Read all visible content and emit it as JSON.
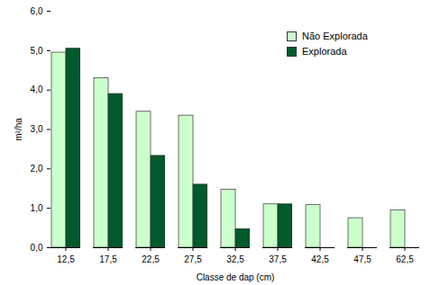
{
  "chart_data": {
    "type": "bar",
    "categories": [
      "12,5",
      "17,5",
      "22,5",
      "27,5",
      "32,5",
      "37,5",
      "42,5",
      "47,5",
      "62,5"
    ],
    "series": [
      {
        "name": "Não Explorada",
        "color": "#ccffcc",
        "values": [
          4.95,
          4.3,
          3.45,
          3.35,
          1.47,
          1.1,
          1.08,
          0.75,
          0.95
        ]
      },
      {
        "name": "Explorada",
        "color": "#005a2b",
        "values": [
          5.05,
          3.9,
          2.33,
          1.6,
          0.47,
          1.1,
          null,
          null,
          null
        ]
      }
    ],
    "x_label": "Classe de dap (cm)",
    "y_label": "m²/ha",
    "ylim": [
      0,
      6
    ],
    "yticks": [
      {
        "value": 0,
        "label": "0,0"
      },
      {
        "value": 1,
        "label": "1,0"
      },
      {
        "value": 2,
        "label": "2,0"
      },
      {
        "value": 3,
        "label": "3,0"
      },
      {
        "value": 4,
        "label": "4,0"
      },
      {
        "value": 5,
        "label": "5,0"
      },
      {
        "value": 6,
        "label": "6,0"
      }
    ],
    "legend": "top-right",
    "grid": false
  }
}
